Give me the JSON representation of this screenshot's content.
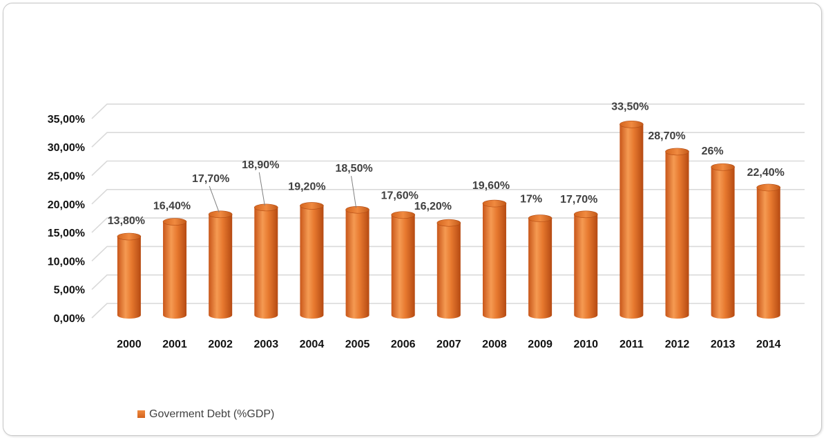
{
  "chart_data": {
    "type": "bar",
    "style": "3d-cylinder",
    "title": "",
    "xlabel": "",
    "ylabel": "",
    "categories": [
      "2000",
      "2001",
      "2002",
      "2003",
      "2004",
      "2005",
      "2006",
      "2007",
      "2008",
      "2009",
      "2010",
      "2011",
      "2012",
      "2013",
      "2014"
    ],
    "series": [
      {
        "name": "Goverment Debt  (%GDP)",
        "color": "#e07a2c",
        "values": [
          13.8,
          16.4,
          17.7,
          18.9,
          19.2,
          18.5,
          17.6,
          16.2,
          19.6,
          17,
          17.7,
          33.5,
          28.7,
          26,
          22.4
        ],
        "data_labels": [
          "13,80%",
          "16,40%",
          "17,70%",
          "18,90%",
          "19,20%",
          "18,50%",
          "17,60%",
          "16,20%",
          "19,60%",
          "17%",
          "17,70%",
          "33,50%",
          "28,70%",
          "26%",
          "22,40%"
        ]
      }
    ],
    "y_ticks": [
      0,
      5,
      10,
      15,
      20,
      25,
      30,
      35
    ],
    "y_tick_labels": [
      "0,00%",
      "5,00%",
      "10,00%",
      "15,00%",
      "20,00%",
      "25,00%",
      "30,00%",
      "35,00%"
    ],
    "ylim": [
      0,
      35
    ],
    "grid": true,
    "legend_position": "bottom-left"
  }
}
